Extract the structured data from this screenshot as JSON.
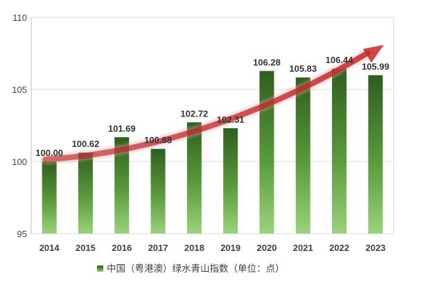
{
  "chart_data": {
    "type": "bar",
    "title": "",
    "xlabel": "",
    "ylabel": "",
    "categories": [
      "2014",
      "2015",
      "2016",
      "2017",
      "2018",
      "2019",
      "2020",
      "2021",
      "2022",
      "2023"
    ],
    "series": [
      {
        "name": "中国（粤港澳）绿水青山指数（单位：点）",
        "values": [
          100.0,
          100.62,
          101.69,
          100.88,
          102.72,
          102.31,
          106.28,
          105.83,
          106.44,
          105.99
        ],
        "labels": [
          "100.00",
          "100.62",
          "101.69",
          "100.88",
          "102.72",
          "102.31",
          "106.28",
          "105.83",
          "106.44",
          "105.99"
        ]
      }
    ],
    "ylim": [
      95,
      110
    ],
    "yticks": [
      "95",
      "100",
      "105",
      "110"
    ],
    "ytick_values": [
      95,
      100,
      105,
      110
    ],
    "grid": true,
    "legend_position": "bottom-center",
    "annotations": [
      "upward trend arrow"
    ]
  },
  "colors": {
    "bar_top": "#2f5e1f",
    "bar_bottom": "#8cc870",
    "arrow": "#c0282b",
    "grid": "#d9d9d9",
    "axis": "#bfbfbf"
  }
}
